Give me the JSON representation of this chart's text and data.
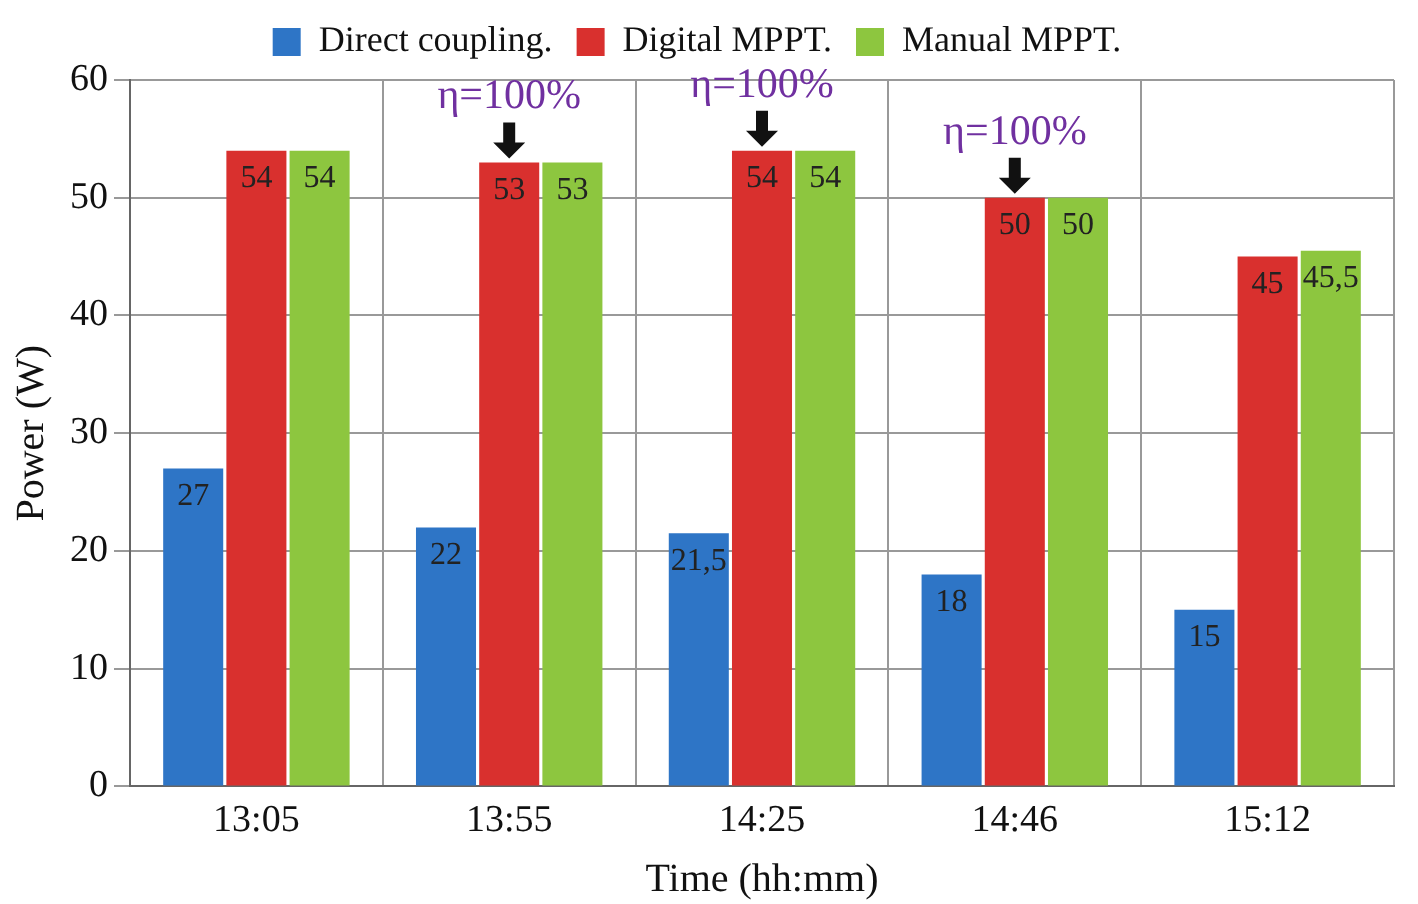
{
  "chart_data": {
    "type": "bar",
    "xlabel": "Time (hh:mm)",
    "ylabel": "Power (W)",
    "categories": [
      "13:05",
      "13:55",
      "14:25",
      "14:46",
      "15:12"
    ],
    "series": [
      {
        "name": "Direct coupling.",
        "color": "#2e75c6",
        "values": [
          27,
          22,
          21.5,
          18,
          15
        ],
        "value_labels": [
          "27",
          "22",
          "21,5",
          "18",
          "15"
        ]
      },
      {
        "name": "Digital MPPT.",
        "color": "#d9302e",
        "values": [
          54,
          53,
          54,
          50,
          45
        ],
        "value_labels": [
          "54",
          "53",
          "54",
          "50",
          "45"
        ]
      },
      {
        "name": "Manual MPPT.",
        "color": "#8dc63f",
        "values": [
          54,
          53,
          54,
          50,
          45.5
        ],
        "value_labels": [
          "54",
          "53",
          "54",
          "50",
          "45,5"
        ]
      }
    ],
    "ylim": [
      0,
      60
    ],
    "yticks": [
      0,
      10,
      20,
      30,
      40,
      50,
      60
    ],
    "grid": true,
    "legend": "top",
    "annotations": [
      {
        "text": "η=100%",
        "x": "13:55",
        "y": 53
      },
      {
        "text": "η=100%",
        "x": "14:25",
        "y": 54
      },
      {
        "text": "η=100%",
        "x": "14:46",
        "y": 50
      }
    ]
  }
}
